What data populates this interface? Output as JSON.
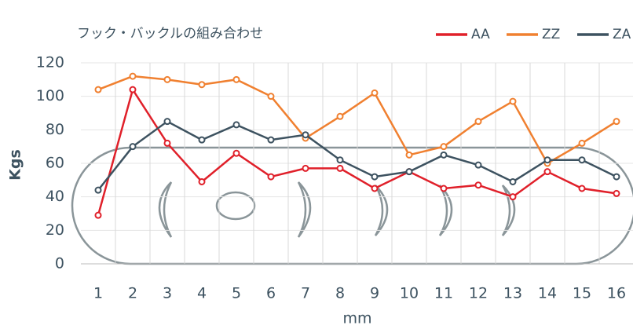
{
  "chart_data": {
    "type": "line",
    "title": "フック・バックルの組み合わせ",
    "x_label": "mm",
    "y_label": "Kgs",
    "categories": [
      "1",
      "2",
      "3",
      "4",
      "5",
      "6",
      "7",
      "8",
      "9",
      "10",
      "11",
      "12",
      "13",
      "14",
      "15",
      "16"
    ],
    "series": [
      {
        "name": "AA",
        "color": "#e0202a",
        "values": [
          29,
          104,
          72,
          49,
          66,
          52,
          57,
          57,
          45,
          55,
          45,
          47,
          40,
          55,
          45,
          42
        ]
      },
      {
        "name": "ZZ",
        "color": "#f08030",
        "values": [
          104,
          112,
          110,
          107,
          110,
          100,
          75,
          88,
          102,
          65,
          70,
          85,
          97,
          60,
          72,
          85
        ]
      },
      {
        "name": "ZA",
        "color": "#3d5260",
        "values": [
          44,
          70,
          85,
          74,
          83,
          74,
          77,
          62,
          52,
          55,
          65,
          59,
          49,
          62,
          62,
          52
        ]
      }
    ],
    "ylim": [
      0,
      120
    ],
    "yticks": [
      0,
      20,
      40,
      60,
      80,
      100,
      120
    ],
    "grid": true
  }
}
